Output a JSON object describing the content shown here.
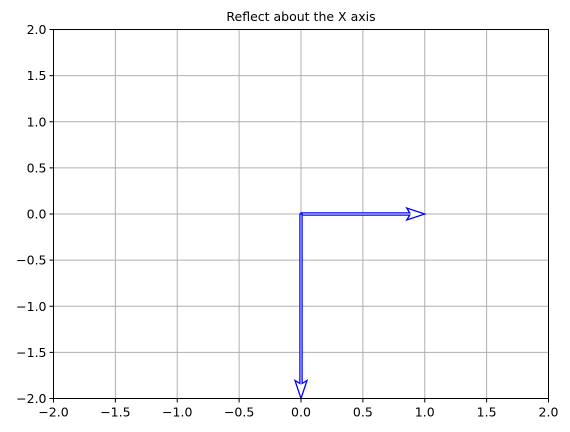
{
  "chart_data": {
    "type": "quiver",
    "title": "Reflect about the X axis",
    "xlabel": "",
    "ylabel": "",
    "xlim": [
      -2.0,
      2.0
    ],
    "ylim": [
      -2.0,
      2.0
    ],
    "xticks": [
      -2.0,
      -1.5,
      -1.0,
      -0.5,
      0.0,
      0.5,
      1.0,
      1.5,
      2.0
    ],
    "yticks": [
      -2.0,
      -1.5,
      -1.0,
      -0.5,
      0.0,
      0.5,
      1.0,
      1.5,
      2.0
    ],
    "xtick_labels": [
      "−2.0",
      "−1.5",
      "−1.0",
      "−0.5",
      "0.0",
      "0.5",
      "1.0",
      "1.5",
      "2.0"
    ],
    "ytick_labels": [
      "−2.0",
      "−1.5",
      "−1.0",
      "−0.5",
      "0.0",
      "0.5",
      "1.0",
      "1.5",
      "2.0"
    ],
    "grid": true,
    "vectors": [
      {
        "x0": 0,
        "y0": 0,
        "dx": 1,
        "dy": 0
      },
      {
        "x0": 0,
        "y0": 0,
        "dx": 0,
        "dy": -2
      }
    ],
    "colors": {
      "vector": "#0000ff",
      "grid": "#b0b0b0",
      "axes": "#000000"
    }
  }
}
